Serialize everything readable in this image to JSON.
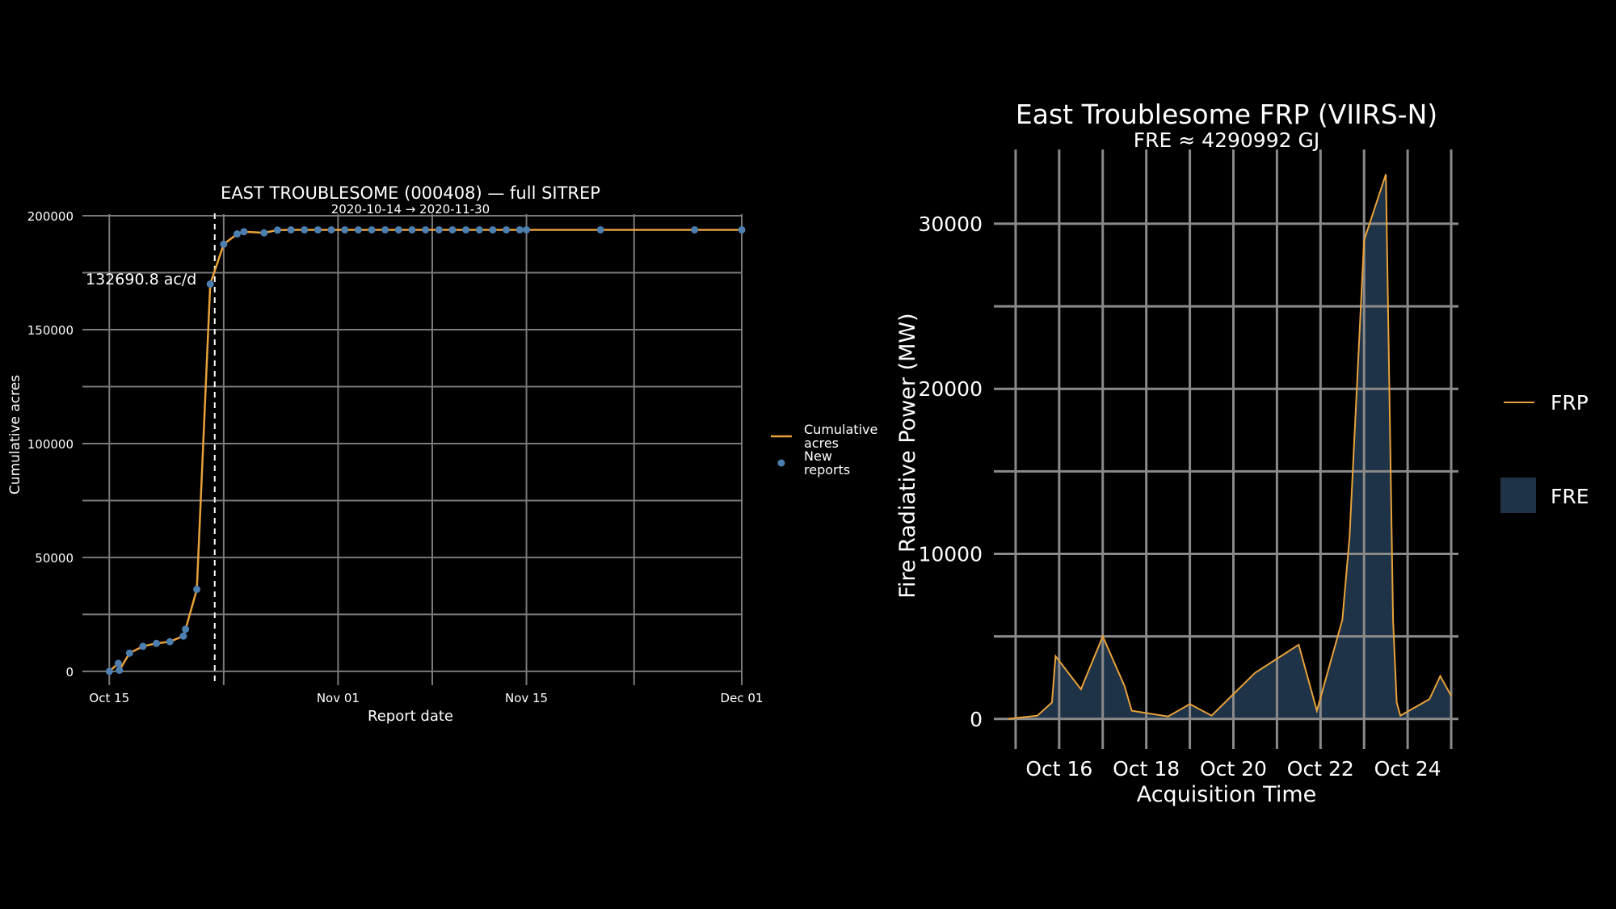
{
  "chart_data": [
    {
      "type": "line",
      "title": "EAST TROUBLESOME (000408) — full SITREP",
      "subtitle": "2020-10-14 → 2020-11-30",
      "xlabel": "Report date",
      "ylabel": "Cumulative acres",
      "xlim": [
        "2020-10-13",
        "2020-12-01"
      ],
      "ylim": [
        -5000,
        200000
      ],
      "x_ticks": [
        "Oct 15",
        "Nov 01",
        "Nov 15",
        "Dec 01"
      ],
      "y_ticks": [
        "0",
        "50000",
        "100000",
        "150000",
        "200000"
      ],
      "annotation": "132690.8 ac/d",
      "vline_date": "2020-10-22T20:00",
      "grid": true,
      "legend_position": "right",
      "series": [
        {
          "name": "Cumulative acres",
          "kind": "line",
          "color": "#E8A23A",
          "points": [
            [
              "2020-10-15T00:00",
              0
            ],
            [
              "2020-10-15T16:00",
              3500
            ],
            [
              "2020-10-15T18:00",
              500
            ],
            [
              "2020-10-16T12:00",
              8000
            ],
            [
              "2020-10-17T12:00",
              11000
            ],
            [
              "2020-10-18T12:00",
              12300
            ],
            [
              "2020-10-19T12:00",
              13000
            ],
            [
              "2020-10-20T12:00",
              15500
            ],
            [
              "2020-10-20T16:00",
              18500
            ],
            [
              "2020-10-21T12:00",
              36000
            ],
            [
              "2020-10-22T12:00",
              170000
            ],
            [
              "2020-10-23T12:00",
              187500
            ],
            [
              "2020-10-24T12:00",
              192000
            ],
            [
              "2020-10-25T00:00",
              193000
            ],
            [
              "2020-10-26T12:00",
              192500
            ],
            [
              "2020-10-27T12:00",
              193700
            ],
            [
              "2020-10-28T12:00",
              193800
            ],
            [
              "2020-10-29T12:00",
              193800
            ],
            [
              "2020-10-30T12:00",
              193800
            ],
            [
              "2020-10-31T12:00",
              193800
            ],
            [
              "2020-11-01T12:00",
              193800
            ],
            [
              "2020-11-02T12:00",
              193800
            ],
            [
              "2020-11-03T12:00",
              193800
            ],
            [
              "2020-11-04T12:00",
              193800
            ],
            [
              "2020-11-05T12:00",
              193800
            ],
            [
              "2020-11-06T12:00",
              193800
            ],
            [
              "2020-11-07T12:00",
              193800
            ],
            [
              "2020-11-08T12:00",
              193800
            ],
            [
              "2020-11-09T12:00",
              193800
            ],
            [
              "2020-11-10T12:00",
              193800
            ],
            [
              "2020-11-11T12:00",
              193800
            ],
            [
              "2020-11-12T12:00",
              193800
            ],
            [
              "2020-11-13T12:00",
              193800
            ],
            [
              "2020-11-14T12:00",
              193800
            ],
            [
              "2020-11-15T00:00",
              193800
            ],
            [
              "2020-11-20T12:00",
              193800
            ],
            [
              "2020-11-27T12:00",
              193800
            ],
            [
              "2020-12-01T00:00",
              193800
            ]
          ]
        },
        {
          "name": "New reports",
          "kind": "points",
          "color": "#4C7FB0"
        }
      ]
    },
    {
      "type": "area",
      "title": "East Troublesome FRP (VIIRS-N)",
      "subtitle": "FRE ≈ 4290992 GJ",
      "xlabel": "Acquisition Time",
      "ylabel": "Fire Radiative Power (MW)",
      "xlim": [
        "2020-10-14T12:00",
        "2020-10-25T04:00"
      ],
      "ylim": [
        -500,
        34500
      ],
      "x_ticks": [
        "Oct 16",
        "Oct 18",
        "Oct 20",
        "Oct 22",
        "Oct 24"
      ],
      "y_ticks": [
        "0",
        "10000",
        "20000",
        "30000"
      ],
      "grid": true,
      "legend_position": "right",
      "series": [
        {
          "name": "FRP",
          "kind": "line",
          "color": "#E8A23A",
          "points": [
            [
              "2020-10-14T20:00",
              0
            ],
            [
              "2020-10-15T12:00",
              200
            ],
            [
              "2020-10-15T20:00",
              1000
            ],
            [
              "2020-10-15T22:00",
              3800
            ],
            [
              "2020-10-16T12:00",
              1800
            ],
            [
              "2020-10-17T00:00",
              5000
            ],
            [
              "2020-10-17T12:00",
              2000
            ],
            [
              "2020-10-17T16:00",
              500
            ],
            [
              "2020-10-18T12:00",
              150
            ],
            [
              "2020-10-19T00:00",
              900
            ],
            [
              "2020-10-19T12:00",
              200
            ],
            [
              "2020-10-20T12:00",
              2800
            ],
            [
              "2020-10-21T12:00",
              4500
            ],
            [
              "2020-10-21T22:00",
              500
            ],
            [
              "2020-10-22T12:00",
              6000
            ],
            [
              "2020-10-22T16:00",
              11000
            ],
            [
              "2020-10-23T00:00",
              29000
            ],
            [
              "2020-10-23T12:00",
              33000
            ],
            [
              "2020-10-23T16:00",
              6000
            ],
            [
              "2020-10-23T18:00",
              1000
            ],
            [
              "2020-10-23T20:00",
              200
            ],
            [
              "2020-10-24T12:00",
              1200
            ],
            [
              "2020-10-24T18:00",
              2600
            ],
            [
              "2020-10-25T00:00",
              1400
            ]
          ]
        },
        {
          "name": "FRE",
          "kind": "area",
          "color": "#1E3347"
        }
      ]
    }
  ]
}
